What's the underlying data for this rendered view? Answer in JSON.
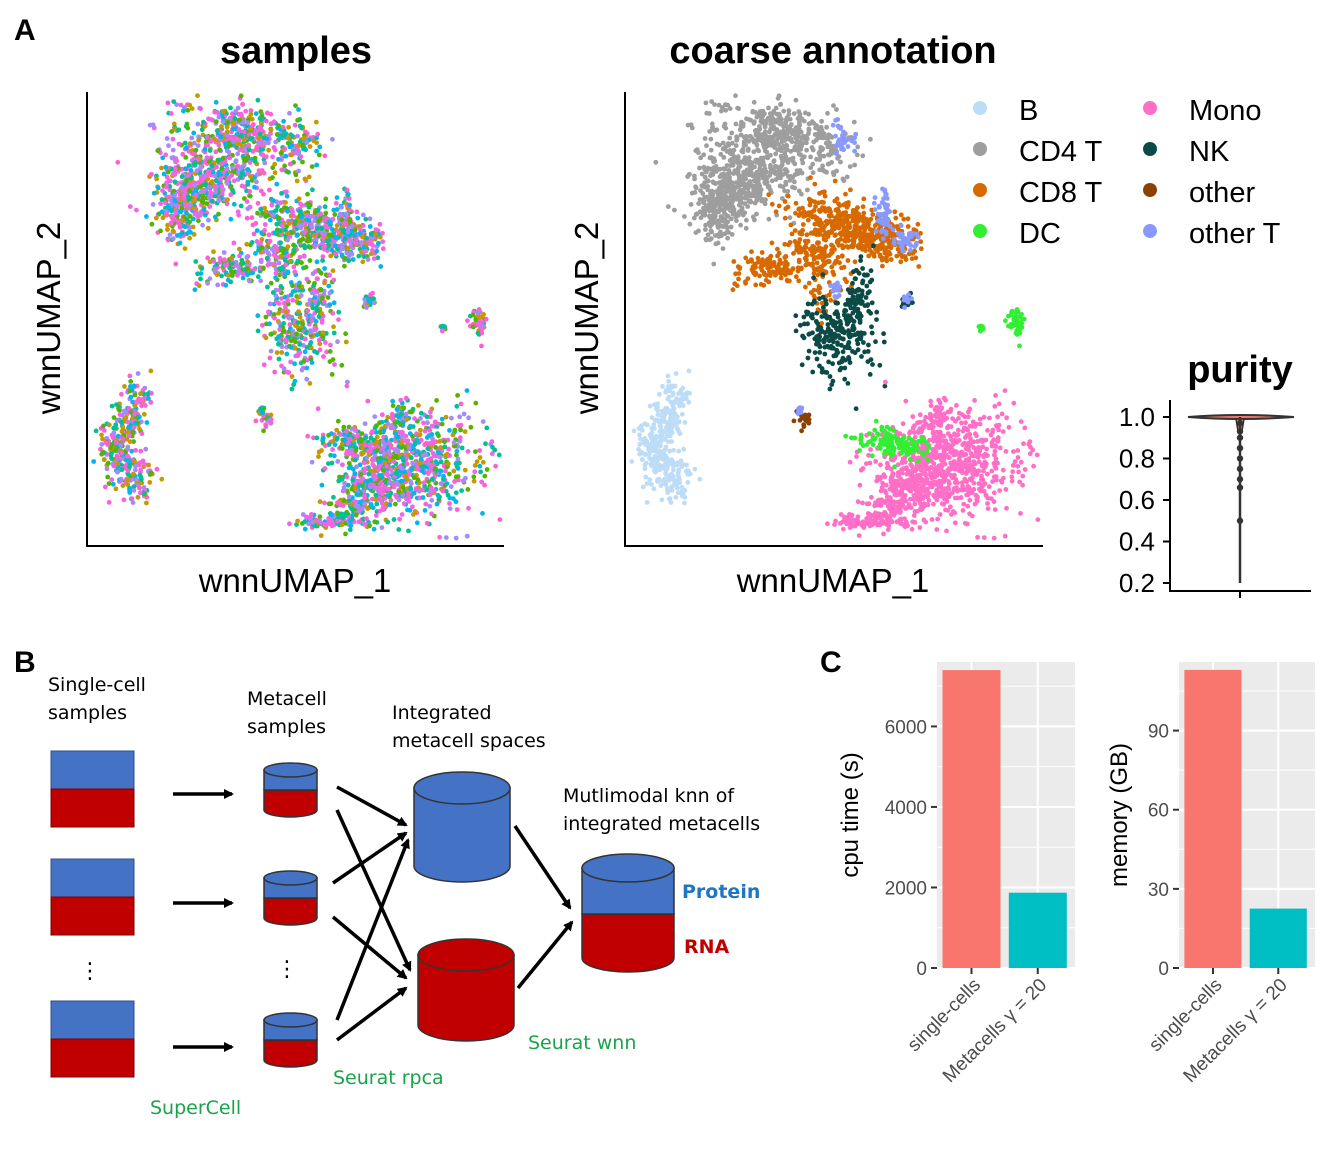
{
  "panels": {
    "a": "A",
    "b": "B",
    "c": "C"
  },
  "colors": {
    "protein": "#4472c4",
    "rna": "#c00000",
    "green_note": "#1aa34a",
    "bar_single": "#f8766d",
    "bar_meta": "#00bfc4",
    "panel_bg": "#ebebeb"
  },
  "chart_data": [
    {
      "type": "scatter",
      "title": "samples",
      "xlabel": "wnnUMAP_1",
      "ylabel": "wnnUMAP_2",
      "point_colors": [
        "#f564e3",
        "#00b6eb",
        "#53b400",
        "#c49a00",
        "#a58aff",
        "#fb61d7",
        "#00c094"
      ],
      "grid": false
    },
    {
      "type": "scatter",
      "title": "coarse annotation",
      "xlabel": "wnnUMAP_1",
      "ylabel": "wnnUMAP_2",
      "legend_position": "top-right",
      "series": [
        {
          "name": "B",
          "color": "#bcdcf8"
        },
        {
          "name": "CD4 T",
          "color": "#9e9e9e"
        },
        {
          "name": "CD8 T",
          "color": "#d66a00"
        },
        {
          "name": "DC",
          "color": "#33ee33"
        },
        {
          "name": "Mono",
          "color": "#ff6ec7"
        },
        {
          "name": "NK",
          "color": "#0c4a47"
        },
        {
          "name": "other",
          "color": "#8b4200"
        },
        {
          "name": "other T",
          "color": "#8899ff"
        }
      ],
      "grid": false
    },
    {
      "type": "violin",
      "title": "purity",
      "yticks": [
        "0.2",
        "0.4",
        "0.6",
        "0.8",
        "1.0"
      ],
      "ylim": [
        0.2,
        1.0
      ],
      "outliers": [
        0.97,
        0.93,
        0.9,
        0.85,
        0.8,
        0.75,
        0.7,
        0.66,
        0.5
      ],
      "grid": false
    },
    {
      "type": "bar",
      "ylabel": "cpu time (s)",
      "categories": [
        "single-cells",
        "Metacells γ = 20"
      ],
      "values": [
        7400,
        1870
      ],
      "colors": [
        "#f8766d",
        "#00bfc4"
      ],
      "yticks": [
        "0",
        "2000",
        "4000",
        "6000"
      ],
      "ylim": [
        0,
        7600
      ],
      "grid": true
    },
    {
      "type": "bar",
      "ylabel": "memory (GB)",
      "categories": [
        "single-cells",
        "Metacells γ = 20"
      ],
      "values": [
        113,
        22.5
      ],
      "colors": [
        "#f8766d",
        "#00bfc4"
      ],
      "yticks": [
        "0",
        "30",
        "60",
        "90"
      ],
      "ylim": [
        0,
        116
      ],
      "grid": true
    }
  ],
  "diagram": {
    "col1_label_line1": "Single-cell",
    "col1_label_line2": "samples",
    "col2_label_line1": "Metacell",
    "col2_label_line2": "samples",
    "col3_label_line1": "Integrated",
    "col3_label_line2": "metacell spaces",
    "col4_label_line1": "Mutlimodal knn of",
    "col4_label_line2": "integrated metacells",
    "ellipsis": "⋮",
    "protein_label": "Protein",
    "rna_label": "RNA",
    "supercell": "SuperCell",
    "seurat_rpca": "Seurat rpca",
    "seurat_wnn": "Seurat wnn"
  }
}
